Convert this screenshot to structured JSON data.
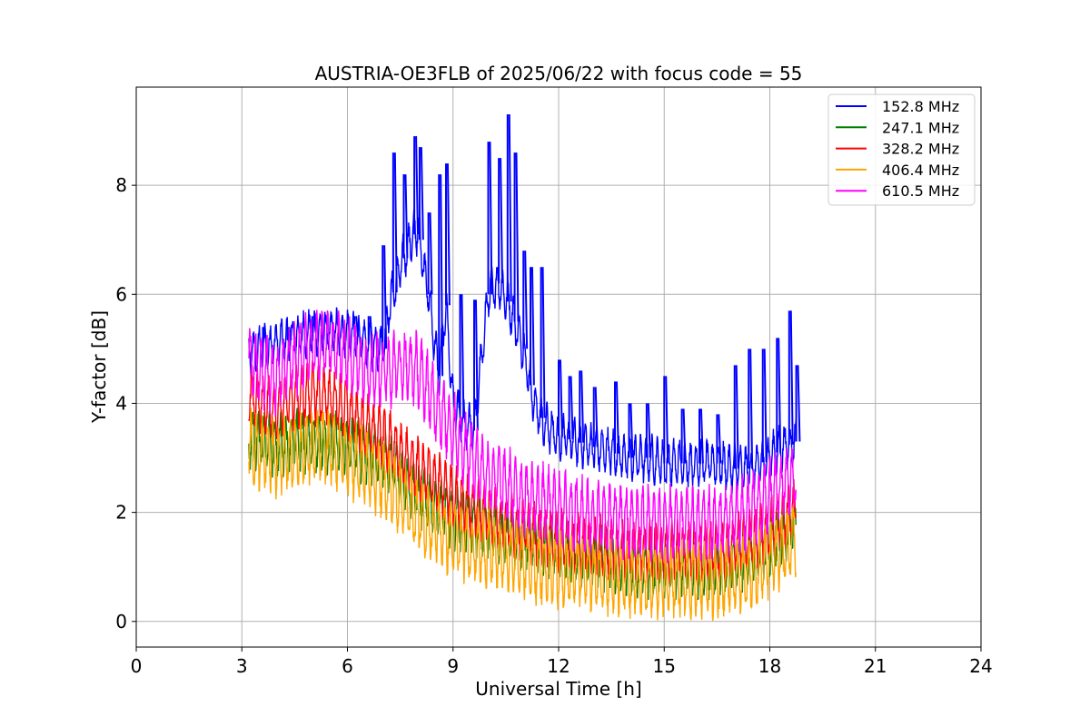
{
  "chart_data": {
    "type": "line",
    "title": "AUSTRIA-OE3FLB of 2025/06/22 with focus code = 55",
    "xlabel": "Universal Time [h]",
    "ylabel": "Y-factor [dB]",
    "xlim": [
      0,
      24
    ],
    "ylim": [
      -0.47,
      9.8
    ],
    "xticks": [
      0,
      3,
      6,
      9,
      12,
      15,
      18,
      21,
      24
    ],
    "yticks": [
      0,
      2,
      4,
      6,
      8
    ],
    "grid": true,
    "legend_position": "top-right",
    "series": [
      {
        "name": "152.8 MHz",
        "color": "#0000ff",
        "x": [
          3.2,
          3.5,
          4.0,
          4.5,
          5.0,
          5.5,
          6.0,
          6.5,
          7.0,
          7.2,
          7.5,
          7.8,
          8.0,
          8.3,
          8.6,
          8.8,
          9.0,
          9.3,
          9.6,
          10.0,
          10.3,
          10.6,
          11.0,
          11.3,
          11.6,
          12.0,
          12.5,
          13.0,
          13.5,
          14.0,
          14.5,
          15.0,
          15.5,
          16.0,
          16.5,
          17.0,
          17.5,
          18.0,
          18.4,
          18.75
        ],
        "y": [
          4.9,
          5.0,
          5.1,
          5.2,
          5.3,
          5.3,
          5.3,
          5.1,
          5.0,
          5.8,
          6.5,
          7.0,
          7.2,
          6.0,
          4.5,
          5.8,
          4.0,
          3.6,
          3.5,
          6.0,
          6.2,
          5.8,
          5.0,
          4.0,
          3.6,
          3.4,
          3.3,
          3.2,
          3.1,
          3.0,
          3.0,
          2.9,
          2.9,
          2.9,
          2.9,
          2.8,
          2.8,
          3.0,
          3.2,
          3.3
        ],
        "spikes": [
          [
            3.6,
            5.4
          ],
          [
            4.3,
            5.4
          ],
          [
            5.0,
            5.6
          ],
          [
            6.2,
            5.6
          ],
          [
            6.6,
            5.6
          ],
          [
            7.0,
            6.9
          ],
          [
            7.3,
            8.6
          ],
          [
            7.6,
            8.2
          ],
          [
            7.9,
            8.9
          ],
          [
            8.05,
            8.7
          ],
          [
            8.3,
            7.5
          ],
          [
            8.6,
            8.2
          ],
          [
            8.8,
            8.4
          ],
          [
            9.2,
            6.0
          ],
          [
            9.6,
            5.9
          ],
          [
            10.0,
            8.8
          ],
          [
            10.3,
            8.5
          ],
          [
            10.55,
            9.3
          ],
          [
            10.75,
            8.6
          ],
          [
            11.0,
            6.8
          ],
          [
            11.2,
            6.5
          ],
          [
            11.5,
            6.5
          ],
          [
            12.0,
            4.8
          ],
          [
            12.3,
            4.5
          ],
          [
            12.6,
            4.6
          ],
          [
            13.0,
            4.3
          ],
          [
            13.6,
            4.4
          ],
          [
            14.0,
            4.0
          ],
          [
            14.5,
            4.0
          ],
          [
            15.0,
            4.5
          ],
          [
            15.5,
            3.9
          ],
          [
            16.0,
            3.9
          ],
          [
            16.5,
            3.8
          ],
          [
            17.0,
            4.7
          ],
          [
            17.4,
            5.0
          ],
          [
            17.8,
            5.0
          ],
          [
            18.2,
            5.2
          ],
          [
            18.55,
            5.7
          ],
          [
            18.75,
            4.7
          ]
        ]
      },
      {
        "name": "247.1 MHz",
        "color": "#008000",
        "x": [
          3.2,
          3.5,
          4.0,
          4.5,
          5.0,
          5.5,
          6.0,
          6.5,
          7.0,
          7.5,
          8.0,
          8.5,
          9.0,
          9.5,
          10.0,
          10.5,
          11.0,
          11.5,
          12.0,
          12.5,
          13.0,
          13.5,
          14.0,
          14.5,
          15.0,
          15.5,
          16.0,
          16.5,
          17.0,
          17.5,
          18.0,
          18.4,
          18.75
        ],
        "y": [
          3.4,
          3.3,
          3.2,
          3.3,
          3.3,
          3.3,
          3.2,
          3.1,
          3.0,
          2.7,
          2.3,
          2.1,
          1.9,
          1.8,
          1.7,
          1.6,
          1.5,
          1.4,
          1.3,
          1.2,
          1.2,
          1.1,
          1.0,
          1.0,
          1.0,
          1.0,
          1.0,
          1.0,
          1.1,
          1.2,
          1.4,
          1.6,
          1.8
        ]
      },
      {
        "name": "328.2 MHz",
        "color": "#ff0000",
        "x": [
          3.2,
          3.5,
          4.0,
          4.5,
          5.0,
          5.5,
          6.0,
          6.5,
          7.0,
          7.5,
          8.0,
          8.5,
          9.0,
          9.5,
          10.0,
          10.5,
          11.0,
          11.5,
          12.0,
          12.5,
          13.0,
          13.5,
          14.0,
          14.5,
          15.0,
          15.5,
          16.0,
          16.5,
          17.0,
          17.5,
          18.0,
          18.4,
          18.75
        ],
        "y": [
          4.2,
          4.0,
          3.9,
          4.1,
          4.2,
          4.1,
          3.9,
          3.6,
          3.4,
          3.1,
          2.8,
          2.6,
          2.3,
          2.1,
          2.0,
          1.8,
          1.7,
          1.6,
          1.5,
          1.4,
          1.4,
          1.3,
          1.3,
          1.3,
          1.3,
          1.3,
          1.3,
          1.3,
          1.4,
          1.5,
          1.7,
          1.9,
          2.1
        ]
      },
      {
        "name": "406.4 MHz",
        "color": "#ffa500",
        "x": [
          3.2,
          3.5,
          4.0,
          4.5,
          5.0,
          5.5,
          6.0,
          6.5,
          7.0,
          7.5,
          8.0,
          8.5,
          9.0,
          9.5,
          10.0,
          10.5,
          11.0,
          11.5,
          12.0,
          12.5,
          13.0,
          13.5,
          14.0,
          14.5,
          15.0,
          15.5,
          16.0,
          16.5,
          17.0,
          17.5,
          18.0,
          18.4,
          18.75
        ],
        "y": [
          3.2,
          3.1,
          3.0,
          3.1,
          3.2,
          3.2,
          3.0,
          2.8,
          2.6,
          2.3,
          1.9,
          1.7,
          1.5,
          1.4,
          1.3,
          1.2,
          1.1,
          1.0,
          0.95,
          0.9,
          0.85,
          0.8,
          0.75,
          0.7,
          0.7,
          0.75,
          0.75,
          0.75,
          0.8,
          0.9,
          1.1,
          1.3,
          1.5
        ]
      },
      {
        "name": "610.5 MHz",
        "color": "#ff00ff",
        "x": [
          3.2,
          3.5,
          4.0,
          4.5,
          5.0,
          5.5,
          6.0,
          6.5,
          7.0,
          7.5,
          8.0,
          8.5,
          9.0,
          9.5,
          10.0,
          10.5,
          11.0,
          11.5,
          12.0,
          12.5,
          13.0,
          13.5,
          14.0,
          14.5,
          15.0,
          15.5,
          16.0,
          16.5,
          17.0,
          17.5,
          18.0,
          18.4,
          18.75
        ],
        "y": [
          4.8,
          4.6,
          4.5,
          4.8,
          5.0,
          5.1,
          4.9,
          4.7,
          4.6,
          4.7,
          4.6,
          4.0,
          3.5,
          3.0,
          2.7,
          2.5,
          2.3,
          2.2,
          2.1,
          2.0,
          1.9,
          1.9,
          1.8,
          1.8,
          1.8,
          1.8,
          1.8,
          1.8,
          1.9,
          2.0,
          2.3,
          2.5,
          2.7
        ]
      }
    ]
  }
}
